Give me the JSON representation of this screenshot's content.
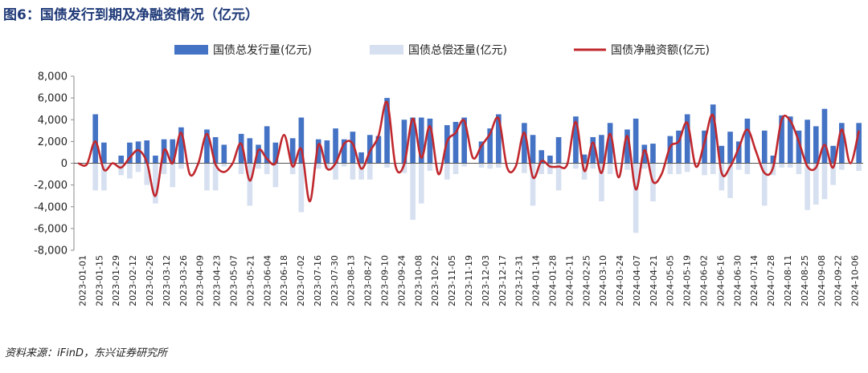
{
  "figure": {
    "title": "图6：国债发行到期及净融资情况（亿元）",
    "source": "资料来源：iFinD，东兴证券研究所"
  },
  "chart_data": {
    "type": "bar",
    "title": "图6：国债发行到期及净融资情况（亿元）",
    "ylim": [
      -8000,
      8000
    ],
    "yticks": [
      8000,
      6000,
      4000,
      2000,
      0,
      -2000,
      -4000,
      -6000,
      -8000
    ],
    "ytick_labels": [
      "8,000",
      "6,000",
      "4,000",
      "2,000",
      "0",
      "-2,000",
      "-4,000",
      "-6,000",
      "-8,000"
    ],
    "legend_position": "top-center",
    "grid": false,
    "x_tick_labels": [
      "2023-01-01",
      "2023-01-15",
      "2023-01-29",
      "2023-02-12",
      "2023-02-26",
      "2023-03-12",
      "2023-03-26",
      "2023-04-09",
      "2023-04-23",
      "2023-05-07",
      "2023-05-21",
      "2023-06-04",
      "2023-06-18",
      "2023-07-02",
      "2023-07-16",
      "2023-07-30",
      "2023-08-13",
      "2023-08-27",
      "2023-09-10",
      "2023-09-24",
      "2023-10-08",
      "2023-10-22",
      "2023-11-05",
      "2023-11-19",
      "2023-12-03",
      "2023-12-17",
      "2023-12-31",
      "2024-01-14",
      "2024-01-28",
      "2024-02-11",
      "2024-02-25",
      "2024-03-10",
      "2024-03-24",
      "2024-04-07",
      "2024-04-21",
      "2024-05-05",
      "2024-05-19",
      "2024-06-02",
      "2024-06-16",
      "2024-06-30",
      "2024-07-14",
      "2024-07-28",
      "2024-08-11",
      "2024-08-25",
      "2024-09-08",
      "2024-09-22",
      "2024-10-06"
    ],
    "series": [
      {
        "name": "国债总发行量(亿元)",
        "kind": "bar",
        "color": "#4472c4",
        "values": [
          0,
          0,
          4500,
          1900,
          0,
          700,
          1900,
          2000,
          2100,
          700,
          2200,
          2200,
          3300,
          0,
          0,
          3100,
          2400,
          1700,
          0,
          2700,
          2300,
          1700,
          3400,
          1900,
          0,
          2300,
          4200,
          0,
          2200,
          2100,
          3200,
          2200,
          2900,
          1000,
          2600,
          2500,
          6000,
          0,
          4000,
          4200,
          4200,
          4100,
          0,
          3500,
          3800,
          4200,
          0,
          2000,
          3200,
          4500,
          0,
          0,
          3700,
          2600,
          1200,
          700,
          2400,
          0,
          4300,
          800,
          2400,
          2600,
          3700,
          0,
          3100,
          4100,
          1700,
          1800,
          0,
          2500,
          3000,
          4500,
          0,
          3000,
          5400,
          1600,
          2900,
          2000,
          4100,
          0,
          3000,
          700,
          4400,
          4300,
          3000,
          4000,
          3400,
          5000,
          1600,
          3700,
          0,
          3700
        ]
      },
      {
        "name": "国债总偿还量(亿元)",
        "kind": "bar",
        "color": "#d6e0f0",
        "values": [
          0,
          0,
          -2500,
          -2500,
          0,
          -1100,
          -1400,
          -800,
          -2000,
          -3700,
          -1000,
          -2200,
          -500,
          0,
          0,
          -2500,
          -2500,
          -300,
          0,
          -1000,
          -3900,
          -500,
          -1000,
          -2200,
          0,
          -1000,
          -4500,
          0,
          -500,
          -500,
          -1500,
          -300,
          -1500,
          -1500,
          -1500,
          0,
          -400,
          0,
          -900,
          -5200,
          -3700,
          -700,
          0,
          -1500,
          -1000,
          -300,
          0,
          -400,
          -500,
          -400,
          0,
          0,
          -900,
          -3900,
          -1000,
          -1000,
          -2500,
          0,
          -500,
          -1500,
          -500,
          -3500,
          -1000,
          0,
          -600,
          -6400,
          -500,
          -3500,
          0,
          -1000,
          -1000,
          -800,
          0,
          -1100,
          -1000,
          -2500,
          -3200,
          -600,
          -1000,
          0,
          -3900,
          -1100,
          -400,
          -400,
          -1000,
          -4300,
          -3800,
          -3300,
          -2000,
          -600,
          0,
          -700
        ]
      },
      {
        "name": "国债净融资额(亿元)",
        "kind": "line",
        "color": "#c0282d",
        "values": [
          0,
          -100,
          2000,
          -600,
          0,
          -400,
          500,
          1200,
          100,
          -3000,
          1200,
          0,
          2800,
          -1000,
          0,
          2700,
          -100,
          -800,
          0,
          1800,
          -1600,
          1200,
          400,
          0,
          2600,
          -300,
          1300,
          -3500,
          1700,
          -500,
          0,
          1800,
          1800,
          -500,
          1100,
          2500,
          5600,
          -300,
          -100,
          4100,
          500,
          3400,
          -1000,
          2000,
          2800,
          3900,
          500,
          1600,
          2700,
          4100,
          -400,
          -300,
          2800,
          -1300,
          200,
          -300,
          -300,
          -100,
          3800,
          -700,
          1900,
          -900,
          2700,
          -1300,
          2500,
          -2400,
          1200,
          -1700,
          -1000,
          1500,
          2000,
          3700,
          -300,
          1900,
          4400,
          -900,
          -300,
          1400,
          3100,
          1100,
          -900,
          -400,
          4000,
          3900,
          2000,
          -300,
          -400,
          1700,
          -400,
          3100,
          0,
          3000
        ]
      }
    ]
  }
}
